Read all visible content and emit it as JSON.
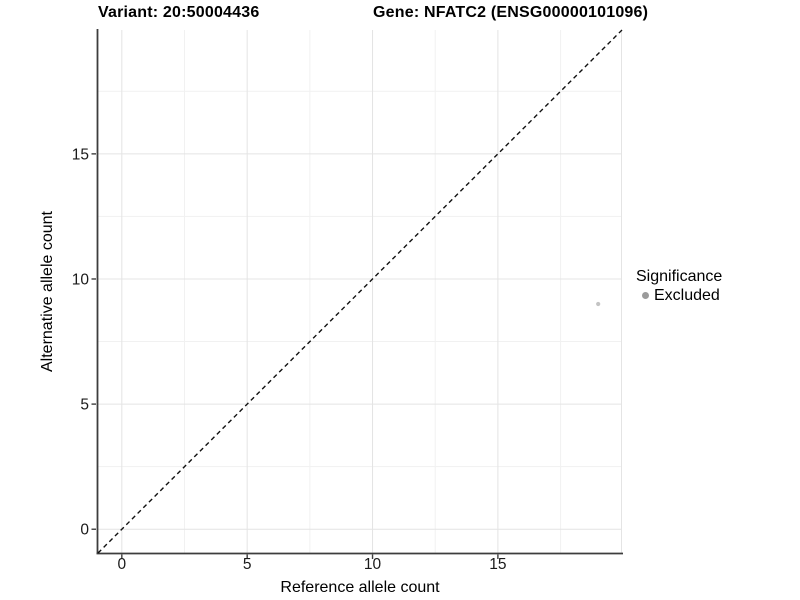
{
  "chart_data": {
    "type": "scatter",
    "title_left": "Variant: 20:50004436",
    "title_right": "Gene: NFATC2 (ENSG00000101096)",
    "xlabel": "Reference allele count",
    "ylabel": "Alternative allele count",
    "xlim": [
      -0.95,
      19.95
    ],
    "ylim": [
      -0.95,
      19.95
    ],
    "x_ticks": [
      0,
      5,
      10,
      15
    ],
    "y_ticks": [
      0,
      5,
      10,
      15
    ],
    "minor_ticks": [
      2.5,
      7.5,
      12.5,
      17.5
    ],
    "grid": "major+minor",
    "abline": {
      "slope": 1,
      "intercept": 0,
      "style": "dashed",
      "color": "#111111"
    },
    "points": [
      {
        "x": 19,
        "y": 9,
        "significance": "Excluded"
      }
    ],
    "legend": {
      "title": "Significance",
      "position": "right",
      "items": [
        {
          "label": "Excluded",
          "color": "#9b9b9b"
        }
      ]
    },
    "colors": {
      "background": "#ffffff",
      "grid_major": "#e4e4e4",
      "grid_minor": "#f1f1f1",
      "axis_line": "#3d3d3d",
      "tick_text": "#1a1a1a",
      "title_text": "#000000",
      "point_fill": "#c4c4c4",
      "legend_key": "#9b9b9b"
    }
  }
}
